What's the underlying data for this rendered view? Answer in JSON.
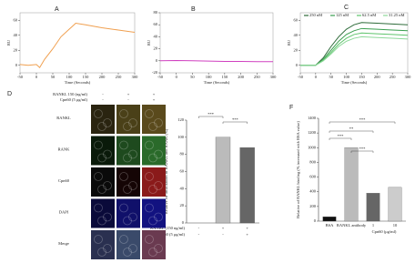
{
  "image_panel": {
    "label": "D",
    "header": [
      {
        "text": "RANKL 150 (ng/ml)",
        "signs": [
          "-",
          "+",
          "+"
        ]
      },
      {
        "text": "Cpn60 (5 μg/ml)",
        "signs": [
          "-",
          "-",
          "+"
        ]
      }
    ],
    "rows": [
      "RANKL",
      "RANK",
      "Cpn60",
      "DAPI",
      "Merge"
    ]
  },
  "chart_data": [
    {
      "type": "line",
      "label": "A",
      "xlabel": "Time (Seconds)",
      "ylabel": "RU",
      "x": [
        -50,
        -25,
        0,
        10,
        25,
        50,
        75,
        100,
        110,
        120,
        150,
        200,
        250,
        300
      ],
      "series": [
        {
          "color": "#f0a050",
          "values": [
            1,
            0,
            1,
            -3,
            8,
            22,
            38,
            48,
            52,
            56,
            54,
            50,
            47,
            44
          ]
        }
      ],
      "xlim": [
        -50,
        300
      ],
      "xticks": [
        -50,
        0,
        50,
        100,
        150,
        200,
        250,
        300
      ],
      "ylim": [
        -10,
        70
      ],
      "yticks": [
        0,
        20,
        40,
        60
      ]
    },
    {
      "type": "line",
      "label": "B",
      "xlabel": "Time (Seconds)",
      "ylabel": "RU",
      "x": [
        -50,
        0,
        50,
        100,
        150,
        200,
        250,
        300
      ],
      "series": [
        {
          "color": "#d040c0",
          "values": [
            0,
            0.5,
            0,
            -0.5,
            -1,
            -1,
            -1.5,
            -1.5
          ]
        }
      ],
      "xlim": [
        -50,
        300
      ],
      "xticks": [
        -50,
        0,
        50,
        100,
        150,
        200,
        250,
        300
      ],
      "ylim": [
        -20,
        80
      ],
      "yticks": [
        -20,
        0,
        20,
        40,
        60,
        80
      ]
    },
    {
      "type": "line",
      "label": "C",
      "xlabel": "Time (Seconds)",
      "ylabel": "RU",
      "x": [
        -50,
        0,
        25,
        50,
        75,
        100,
        125,
        150,
        200,
        250,
        300
      ],
      "series": [
        {
          "name": "250 nM",
          "color": "#2e6b3a",
          "values": [
            0,
            0,
            10,
            25,
            38,
            48,
            54,
            57,
            56,
            55,
            54
          ]
        },
        {
          "name": "125 nM",
          "color": "#3a9e4f",
          "values": [
            0,
            0,
            8,
            20,
            32,
            41,
            46,
            49,
            48,
            47,
            46
          ]
        },
        {
          "name": "62.5 nM",
          "color": "#5ec46c",
          "values": [
            0,
            0,
            7,
            17,
            28,
            36,
            41,
            43,
            42,
            41,
            40
          ]
        },
        {
          "name": "31.25 nM",
          "color": "#8ed89a",
          "values": [
            0,
            0,
            6,
            15,
            25,
            32,
            36,
            38,
            37,
            36,
            35
          ]
        }
      ],
      "xlim": [
        -50,
        300
      ],
      "xticks": [
        -50,
        0,
        50,
        100,
        150,
        200,
        250,
        300
      ],
      "ylim": [
        -10,
        70
      ],
      "yticks": [
        0,
        20,
        40,
        60
      ]
    },
    {
      "type": "bar",
      "label": "E",
      "ylabel": "Relative co-localization of RANKL and RANK (%)",
      "categories": [
        null,
        null,
        null
      ],
      "values": [
        0,
        100,
        88
      ],
      "colors": [
        "#bbbbbb",
        "#bbbbbb",
        "#666666"
      ],
      "conditions": [
        {
          "label": "RANKL (150 ng/ml)",
          "signs": [
            "-",
            "+",
            "+"
          ]
        },
        {
          "label": "Cpn60 (5 μg/ml)",
          "signs": [
            "-",
            "-",
            "+"
          ]
        }
      ],
      "annotations": [
        "***",
        "***"
      ],
      "ylim": [
        0,
        120
      ],
      "yticks": [
        0,
        20,
        40,
        60,
        80,
        100,
        120
      ]
    },
    {
      "type": "bar",
      "label": "F",
      "ylabel": "Relative of RANKL binding (% increased with BSA value)",
      "xlabel": "Cpn60 (μg/ml)",
      "categories": [
        "BSA",
        "RANKL antibody",
        "1",
        "10"
      ],
      "values": [
        60,
        1000,
        380,
        460
      ],
      "colors": [
        "#111111",
        "#bbbbbb",
        "#666666",
        "#cccccc"
      ],
      "annotations": [
        "***",
        "**",
        "***",
        "***"
      ],
      "ylim": [
        0,
        1400
      ],
      "yticks": [
        0,
        200,
        400,
        600,
        800,
        1000,
        1200,
        1400
      ]
    }
  ]
}
